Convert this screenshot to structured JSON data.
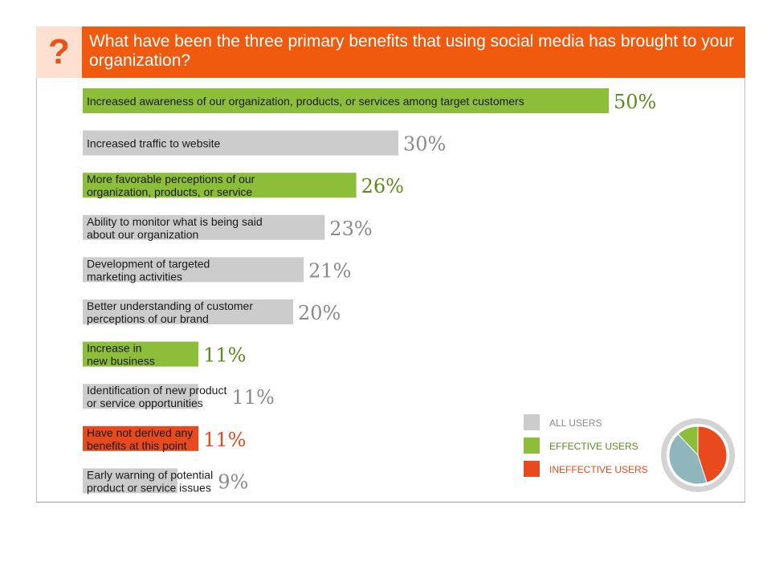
{
  "question": {
    "mark": "?",
    "title": "What have been the three primary benefits that using social media has brought to your organization?"
  },
  "colors": {
    "all_users": "#cccccc",
    "effective": "#8dbe3a",
    "ineffective": "#e84a1e",
    "all_users_text": "#8a8a8a",
    "effective_text": "#5e8a1e",
    "ineffective_text": "#e84a1e",
    "header": "#ef5a0f"
  },
  "chart_data": {
    "type": "bar",
    "orientation": "horizontal",
    "unit": "%",
    "xlim": [
      0,
      50
    ],
    "items": [
      {
        "label": [
          "Increased awareness of our organization, products, or services among target customers"
        ],
        "value": 50,
        "value_label": "50%",
        "group": "effective"
      },
      {
        "label": [
          "Increased traffic to website"
        ],
        "value": 30,
        "value_label": "30%",
        "group": "all_users"
      },
      {
        "label": [
          "More favorable perceptions of our",
          "organization, products, or service"
        ],
        "value": 26,
        "value_label": "26%",
        "group": "effective"
      },
      {
        "label": [
          "Ability to monitor what is being said",
          "about our organization"
        ],
        "value": 23,
        "value_label": "23%",
        "group": "all_users"
      },
      {
        "label": [
          "Development of targeted",
          "marketing activities"
        ],
        "value": 21,
        "value_label": "21%",
        "group": "all_users"
      },
      {
        "label": [
          "Better understanding of customer",
          "perceptions of our brand"
        ],
        "value": 20,
        "value_label": "20%",
        "group": "all_users"
      },
      {
        "label": [
          "Increase in",
          "new business"
        ],
        "value": 11,
        "value_label": "11%",
        "group": "effective"
      },
      {
        "label": [
          "Identification of new product",
          "or service opportunities"
        ],
        "value": 11,
        "value_label": "11%",
        "group": "all_users"
      },
      {
        "label": [
          "Have not derived any",
          "benefits at this point"
        ],
        "value": 11,
        "value_label": "11%",
        "group": "ineffective"
      },
      {
        "label": [
          "Early warning of potential",
          "product or service issues"
        ],
        "value": 9,
        "value_label": "9%",
        "group": "all_users"
      }
    ],
    "legend": {
      "position": "bottom-right",
      "entries": [
        {
          "name": "ALL USERS",
          "group": "all_users"
        },
        {
          "name": "EFFECTIVE USERS",
          "group": "effective"
        },
        {
          "name": "INEFFECTIVE USERS",
          "group": "ineffective"
        }
      ]
    },
    "legend_pie": {
      "type": "pie",
      "slices": [
        {
          "group": "ineffective",
          "value": 45
        },
        {
          "group": "all_users",
          "value": 43
        },
        {
          "group": "effective",
          "value": 12
        }
      ]
    }
  }
}
